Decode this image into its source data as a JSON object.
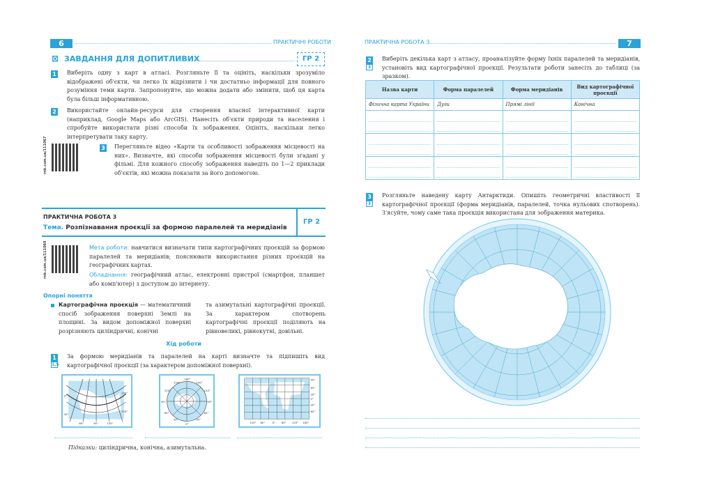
{
  "left": {
    "page_number": "6",
    "header": "ПРАКТИЧНІ РОБОТИ",
    "section": {
      "icon": "checkbox-x-icon",
      "title": "ЗАВДАННЯ ДЛЯ ДОПИТЛИВИХ",
      "level": "ГР 2"
    },
    "tasks": [
      {
        "n": "1",
        "text": "Виберіть одну з карт в атласі. Розгляньте її та оцініть, наскільки зрозуміло відображені об'єкти, чи легко їх відрізнити і чи достатньо інформації для повного розуміння теми карти. Запропонуйте, що можна додати або змінити, щоб ця карта була більш інформативною."
      },
      {
        "n": "2",
        "text": "Використайте онлайн-ресурси для створення власної інтерактивної карти (наприклад, Google Maps або ArcGIS). Нанесіть об'єкти природи та населення і спробуйте використати різні способи їх зображення. Оцініть, наскільки легко інтерпретувати таку карту."
      },
      {
        "n": "3",
        "text": "Перегляньте відео «Карти та особливості зображення місцевості на них». Визначте, які способи зображення місцевості були згадані у фільмі. Для кожного способу зображення наведіть по 1—2 приклади об'єктів, які можна показати за його допомогою."
      }
    ],
    "qr1_url": "rnk.com.ua/111067",
    "practical": {
      "label": "ПРАКТИЧНА РОБОТА 3",
      "topic_label": "Тема.",
      "topic": "Розпізнавання проєкції за формою паралелей та меридіанів",
      "level": "ГР 2"
    },
    "qr2_url": "rnk.com.ua/111060",
    "goal_label": "Мета роботи:",
    "goal": "навчитися визначати типи картографічних проєкцій за формою паралелей та меридіанів; пояснювати використання різних проєкцій на географічних картах.",
    "equip_label": "Обладнання:",
    "equip": "географічний атлас, електронні пристрої (смартфон, планшет або комп'ютер) з доступом до інтернету.",
    "concepts_title": "Опорні поняття",
    "concept_term": "Картографічна проєкція",
    "concept_col1": "— математичний спосіб зображення поверхні Землі на площині. За видом допоміжної поверхні розрізняють циліндричні, конічні",
    "concept_col2": "та азимутальні картографічні проєкції. За характером спотворень картографічні проєкції поділяють на рівновеликі, рівнокутні, довільні.",
    "procedure_title": "Хід роботи",
    "task1": {
      "n": "1",
      "score": "1,5",
      "text": "За формою меридіанів та паралелей на карті визначте та підпишіть вид картографічної проєкції (за характером допоміжної поверхні)."
    },
    "map_labels": {
      "conic": [
        "0°",
        "30°",
        "180°",
        "150°",
        "60°",
        "90°",
        "120°"
      ],
      "azimuthal": [
        "180°",
        "150°",
        "150°",
        "120°",
        "120°",
        "90°",
        "90°",
        "60°",
        "60°",
        "30°",
        "30°",
        "0°"
      ],
      "cylindrical": [
        "90°",
        "60°",
        "30°",
        "0°",
        "30°",
        "60°",
        "120°",
        "60°",
        "0°",
        "60°",
        "120°",
        "180°"
      ]
    },
    "hint_label": "Підказки:",
    "hint": "циліндрична, конічна, азимутальна."
  },
  "right": {
    "header": "ПРАКТИЧНА РОБОТА 3",
    "page_number": "7",
    "task2": {
      "n": "2",
      "score": "3",
      "text": "Виберіть декілька карт з атласу, проаналізуйте форму їхніх паралелей та меридіанів, установіть вид картографічної проєкції. Результати роботи занесіть до таблиці (за зразком)."
    },
    "table": {
      "headers": [
        "Назва карти",
        "Форма паралелей",
        "Форма меридіанів",
        "Вид картографічної проєкції"
      ],
      "sample": [
        "Фізична карта України",
        "Дуги",
        "Прямі лінії",
        "Конічна"
      ]
    },
    "task3": {
      "n": "3",
      "score": "3",
      "text": "Розгляньте наведену карту Антарктиди. Опишіть геометричні властивості її картографічної проєкції (форма меридіанів, паралелей, точка нульових спотворень). З'ясуйте, чому саме така проєкція використана для зображення материка."
    },
    "map_color": "#bfe4f5"
  }
}
